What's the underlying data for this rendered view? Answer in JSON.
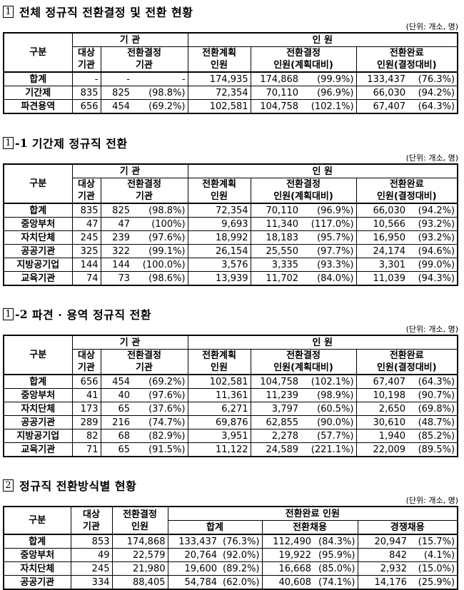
{
  "unit": "(단위: 개소, 명)",
  "header_common": {
    "gubun": "구분",
    "gigwan": "기 관",
    "inwon": "인 원",
    "daesang": "대상\n기관",
    "jeonhwan_gyeoljeong_gigwan": "전환결정\n기관",
    "gyehoek": "전환계획\n인원",
    "gyeoljeong_inwon": "전환결정\n인원(계획대비)",
    "wanryo_inwon": "전환완료\n인원(결정대비)"
  },
  "s1": {
    "num": "1",
    "title": "전체 정규직 전환결정 및 전환 현황",
    "gigwan": "기 관",
    "inwon": "인 원",
    "rows": [
      {
        "label": "합계",
        "c1": "-",
        "c2": "-",
        "c3": "-",
        "c4": "174,935",
        "c5": "174,868",
        "c6": "(99.9%)",
        "c7": "133,437",
        "c8": "(76.3%)"
      },
      {
        "label": "기간제",
        "c1": "835",
        "c2": "825",
        "c3": "(98.8%)",
        "c4": "72,354",
        "c5": "70,110",
        "c6": "(96.9%)",
        "c7": "66,030",
        "c8": "(94.2%)"
      },
      {
        "label": "파견용역",
        "c1": "656",
        "c2": "454",
        "c3": "(69.2%)",
        "c4": "102,581",
        "c5": "104,758",
        "c6": "(102.1%)",
        "c7": "67,407",
        "c8": "(64.3%)"
      }
    ]
  },
  "s2": {
    "num": "1",
    "sub": "-1",
    "title": "기간제 정규직 전환",
    "gigwan": "기 관",
    "inwon": "인 원",
    "rows": [
      {
        "label": "합계",
        "c1": "835",
        "c2": "825",
        "c3": "(98.8%)",
        "c4": "72,354",
        "c5": "70,110",
        "c6": "(96.9%)",
        "c7": "66,030",
        "c8": "(94.2%)"
      },
      {
        "label": "중앙부처",
        "c1": "47",
        "c2": "47",
        "c3": "(100%)",
        "c4": "9,693",
        "c5": "11,340",
        "c6": "(117.0%)",
        "c7": "10,566",
        "c8": "(93.2%)"
      },
      {
        "label": "자치단체",
        "c1": "245",
        "c2": "239",
        "c3": "(97.6%)",
        "c4": "18,992",
        "c5": "18,183",
        "c6": "(95.7%)",
        "c7": "16,950",
        "c8": "(93.2%)"
      },
      {
        "label": "공공기관",
        "c1": "325",
        "c2": "322",
        "c3": "(99.1%)",
        "c4": "26,154",
        "c5": "25,550",
        "c6": "(97.7%)",
        "c7": "24,174",
        "c8": "(94.6%)"
      },
      {
        "label": "지방공기업",
        "c1": "144",
        "c2": "144",
        "c3": "(100.0%)",
        "c4": "3,576",
        "c5": "3,335",
        "c6": "(93.3%)",
        "c7": "3,301",
        "c8": "(99.0%)"
      },
      {
        "label": "교육기관",
        "c1": "74",
        "c2": "73",
        "c3": "(98.6%)",
        "c4": "13,939",
        "c5": "11,702",
        "c6": "(84.0%)",
        "c7": "11,039",
        "c8": "(94.3%)"
      }
    ]
  },
  "s3": {
    "num": "1",
    "sub": "-2",
    "title": "파견 · 용역 정규직 전환",
    "gigwan": "기 관",
    "inwon": "인 원",
    "rows": [
      {
        "label": "합계",
        "c1": "656",
        "c2": "454",
        "c3": "(69.2%)",
        "c4": "102,581",
        "c5": "104,758",
        "c6": "(102.1%)",
        "c7": "67,407",
        "c8": "(64.3%)"
      },
      {
        "label": "중앙부처",
        "c1": "41",
        "c2": "40",
        "c3": "(97.6%)",
        "c4": "11,361",
        "c5": "11,239",
        "c6": "(98.9%)",
        "c7": "10,198",
        "c8": "(90.7%)"
      },
      {
        "label": "자치단체",
        "c1": "173",
        "c2": "65",
        "c3": "(37.6%)",
        "c4": "6,271",
        "c5": "3,797",
        "c6": "(60.5%)",
        "c7": "2,650",
        "c8": "(69.8%)"
      },
      {
        "label": "공공기관",
        "c1": "289",
        "c2": "216",
        "c3": "(74.7%)",
        "c4": "69,876",
        "c5": "62,855",
        "c6": "(90.0%)",
        "c7": "30,610",
        "c8": "(48.7%)"
      },
      {
        "label": "지방공기업",
        "c1": "82",
        "c2": "68",
        "c3": "(82.9%)",
        "c4": "3,951",
        "c5": "2,278",
        "c6": "(57.7%)",
        "c7": "1,940",
        "c8": "(85.2%)"
      },
      {
        "label": "교육기관",
        "c1": "71",
        "c2": "65",
        "c3": "(91.5%)",
        "c4": "11,122",
        "c5": "24,589",
        "c6": "(221.1%)",
        "c7": "22,009",
        "c8": "(89.5%)"
      }
    ]
  },
  "s4": {
    "num": "2",
    "title": "정규직 전환방식별 현황",
    "h_gubun": "구분",
    "h_daesang": "대상\n기관",
    "h_gyeoljeong": "전환결정\n인원",
    "h_wanryo": "전환완료 인원",
    "h_total": "합계",
    "h_jeonhwan": "전환채용",
    "h_gyeongjaeng": "경쟁채용",
    "rows": [
      {
        "label": "합계",
        "c1": "853",
        "c2": "174,868",
        "c3": "133,437",
        "c4": "(76.3%)",
        "c5": "112,490",
        "c6": "(84.3%)",
        "c7": "20,947",
        "c8": "(15.7%)"
      },
      {
        "label": "중앙부처",
        "c1": "49",
        "c2": "22,579",
        "c3": "20,764",
        "c4": "(92.0%)",
        "c5": "19,922",
        "c6": "(95.9%)",
        "c7": "842",
        "c8": "(4.1%)"
      },
      {
        "label": "자치단체",
        "c1": "245",
        "c2": "21,980",
        "c3": "19,600",
        "c4": "(89.2%)",
        "c5": "16,668",
        "c6": "(85.0%)",
        "c7": "2,932",
        "c8": "(15.0%)"
      },
      {
        "label": "공공기관",
        "c1": "334",
        "c2": "88,405",
        "c3": "54,784",
        "c4": "(62.0%)",
        "c5": "40,608",
        "c6": "(74.1%)",
        "c7": "14,176",
        "c8": "(25.9%)"
      }
    ]
  }
}
